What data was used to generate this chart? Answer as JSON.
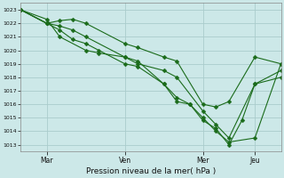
{
  "bg_color": "#cce8e8",
  "grid_color": "#aacccc",
  "line_color": "#1a6b1a",
  "marker_color": "#1a6b1a",
  "ylim": [
    1012.5,
    1023.5
  ],
  "yticks": [
    1013,
    1014,
    1015,
    1016,
    1017,
    1018,
    1019,
    1020,
    1021,
    1022,
    1023
  ],
  "xlabel": "Pression niveau de la mer( hPa )",
  "xtick_labels": [
    "Mar",
    "Ven",
    "Mer",
    "Jeu"
  ],
  "xtick_positions": [
    2,
    8,
    14,
    18
  ],
  "xlim": [
    0,
    20
  ],
  "line1": {
    "x": [
      0,
      2,
      3,
      4,
      5,
      8,
      9,
      11,
      12,
      14,
      15,
      16,
      18,
      20
    ],
    "y": [
      1023.0,
      1022.0,
      1022.2,
      1022.3,
      1022.0,
      1020.5,
      1020.2,
      1019.5,
      1019.2,
      1016.0,
      1015.8,
      1016.2,
      1019.5,
      1019.0
    ]
  },
  "line2": {
    "x": [
      0,
      2,
      3,
      4,
      5,
      8,
      9,
      11,
      12,
      14,
      15,
      16,
      18,
      20
    ],
    "y": [
      1023.0,
      1022.0,
      1021.8,
      1021.5,
      1021.0,
      1019.5,
      1019.0,
      1018.5,
      1018.0,
      1015.5,
      1014.5,
      1013.5,
      1017.5,
      1018.0
    ]
  },
  "line3": {
    "x": [
      0,
      2,
      3,
      4,
      5,
      6,
      8,
      9,
      11,
      12,
      13,
      14,
      15,
      16,
      18,
      20
    ],
    "y": [
      1023.0,
      1022.0,
      1021.5,
      1020.8,
      1020.5,
      1020.0,
      1019.0,
      1018.8,
      1017.5,
      1016.5,
      1016.0,
      1015.0,
      1014.0,
      1013.2,
      1013.5,
      1019.0
    ]
  },
  "line4": {
    "x": [
      0,
      2,
      3,
      5,
      6,
      8,
      9,
      11,
      12,
      13,
      14,
      15,
      16,
      17,
      18,
      20
    ],
    "y": [
      1023.0,
      1022.3,
      1021.0,
      1020.0,
      1019.8,
      1019.5,
      1019.2,
      1017.5,
      1016.2,
      1016.0,
      1014.8,
      1014.2,
      1013.0,
      1014.8,
      1017.5,
      1018.5
    ]
  }
}
